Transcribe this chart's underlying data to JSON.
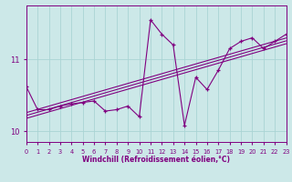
{
  "xlabel": "Windchill (Refroidissement éolien,°C)",
  "bg_color": "#cce8e8",
  "line_color": "#800080",
  "grid_color": "#aad4d4",
  "text_color": "#800080",
  "hours": [
    0,
    1,
    2,
    3,
    4,
    5,
    6,
    7,
    8,
    9,
    10,
    11,
    12,
    13,
    14,
    15,
    16,
    17,
    18,
    19,
    20,
    21,
    22,
    23
  ],
  "windchill": [
    10.62,
    10.3,
    10.3,
    10.35,
    10.38,
    10.4,
    10.42,
    10.28,
    10.3,
    10.35,
    10.2,
    11.55,
    11.35,
    11.2,
    10.08,
    10.75,
    10.58,
    10.85,
    11.15,
    11.25,
    11.3,
    11.15,
    11.25,
    11.35
  ],
  "ylim": [
    9.85,
    11.75
  ],
  "xlim": [
    0,
    23
  ],
  "yticks": [
    10,
    11
  ],
  "xticks": [
    0,
    1,
    2,
    3,
    4,
    5,
    6,
    7,
    8,
    9,
    10,
    11,
    12,
    13,
    14,
    15,
    16,
    17,
    18,
    19,
    20,
    21,
    22,
    23
  ]
}
